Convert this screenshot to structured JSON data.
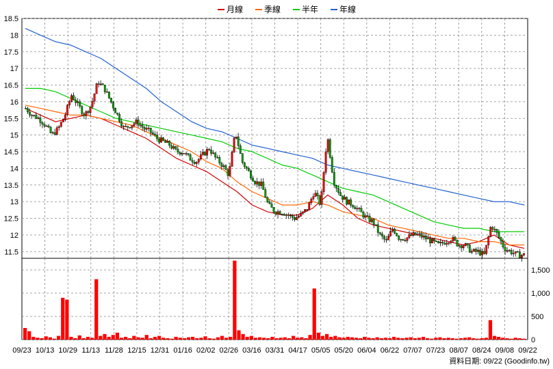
{
  "chart_data": [
    {
      "type": "candlestick",
      "grid": true,
      "legend_placement": "top-center",
      "ylim": [
        11.3,
        18.5
      ],
      "yticks": [
        "18.5",
        "18",
        "17.5",
        "17",
        "16.5",
        "16",
        "15.5",
        "15",
        "14.5",
        "14",
        "13.5",
        "13",
        "12.5",
        "12",
        "11.5"
      ],
      "xticks": [
        "09/23",
        "10/13",
        "10/29",
        "11/13",
        "11/28",
        "12/15",
        "12/31",
        "01/16",
        "02/02",
        "02/26",
        "03/16",
        "03/31",
        "04/17",
        "05/05",
        "05/20",
        "06/04",
        "06/22",
        "07/07",
        "07/23",
        "08/07",
        "08/24",
        "09/08",
        "09/22"
      ],
      "colors": {
        "up": "#ff0000",
        "down": "#00a000",
        "month": "#d00000",
        "quarter": "#ff6600",
        "half_year": "#00cc00",
        "year": "#1f5fcf"
      },
      "series": [
        {
          "name": "月線",
          "color": "#d00000",
          "values": [
            15.8,
            15.6,
            15.4,
            15.5,
            15.6,
            15.5,
            15.3,
            15.1,
            14.9,
            14.6,
            14.3,
            14.1,
            13.9,
            13.6,
            13.3,
            12.9,
            12.7,
            12.6,
            12.6,
            12.8,
            13.2,
            12.9,
            12.5,
            12.3,
            12.2,
            12.1,
            12.0,
            11.9,
            11.8,
            11.7,
            11.8,
            12.0,
            11.7,
            11.6
          ]
        },
        {
          "name": "季線",
          "color": "#ff6600",
          "values": [
            15.9,
            15.8,
            15.7,
            15.6,
            15.6,
            15.5,
            15.4,
            15.3,
            15.1,
            14.9,
            14.7,
            14.5,
            14.2,
            14.0,
            13.6,
            13.3,
            13.1,
            12.9,
            12.9,
            13.0,
            12.9,
            12.7,
            12.6,
            12.5,
            12.3,
            12.2,
            12.1,
            12.0,
            11.9,
            11.9,
            11.8,
            11.8,
            11.7,
            11.7
          ]
        },
        {
          "name": "半年",
          "color": "#00cc00",
          "values": [
            16.4,
            16.4,
            16.3,
            16.1,
            15.9,
            15.7,
            15.5,
            15.4,
            15.3,
            15.2,
            15.1,
            15.0,
            14.9,
            14.8,
            14.6,
            14.5,
            14.3,
            14.1,
            14.0,
            13.8,
            13.6,
            13.4,
            13.3,
            13.2,
            13.0,
            12.8,
            12.6,
            12.4,
            12.3,
            12.2,
            12.2,
            12.1,
            12.1,
            12.1
          ]
        },
        {
          "name": "年線",
          "color": "#1f5fcf",
          "values": [
            18.2,
            18.0,
            17.8,
            17.7,
            17.5,
            17.3,
            17.0,
            16.7,
            16.4,
            16.0,
            15.7,
            15.4,
            15.2,
            15.1,
            14.9,
            14.7,
            14.6,
            14.5,
            14.4,
            14.3,
            14.1,
            14.0,
            13.9,
            13.8,
            13.7,
            13.6,
            13.5,
            13.4,
            13.3,
            13.2,
            13.1,
            13.0,
            13.0,
            12.9
          ]
        }
      ],
      "price_path": [
        15.8,
        15.6,
        15.5,
        15.3,
        15.0,
        15.2,
        15.6,
        16.2,
        15.9,
        15.6,
        15.9,
        16.6,
        16.4,
        16.0,
        15.6,
        15.2,
        15.3,
        15.4,
        15.2,
        15.1,
        14.9,
        14.8,
        14.7,
        14.5,
        14.5,
        14.3,
        14.2,
        14.4,
        14.6,
        14.3,
        14.1,
        13.8,
        15.1,
        14.2,
        13.9,
        13.6,
        13.5,
        12.9,
        12.7,
        12.7,
        12.6,
        12.5,
        12.6,
        12.8,
        13.3,
        12.9,
        15.0,
        13.6,
        13.2,
        13.0,
        12.9,
        12.7,
        12.5,
        12.4,
        12.0,
        11.8,
        12.2,
        11.9,
        11.9,
        12.0,
        12.0,
        11.9,
        11.8,
        11.7,
        11.8,
        11.9,
        11.7,
        11.7,
        11.5,
        11.5,
        11.4,
        12.3,
        12.0,
        11.6,
        11.5,
        11.4,
        11.4
      ]
    },
    {
      "type": "bar",
      "ylim": [
        0,
        1750
      ],
      "yticks": [
        "1,500",
        "1,000",
        "500",
        "0"
      ],
      "color": "#ff0000",
      "values": [
        250,
        180,
        60,
        40,
        30,
        70,
        50,
        20,
        80,
        900,
        860,
        60,
        30,
        90,
        30,
        60,
        40,
        1300,
        80,
        120,
        60,
        100,
        150,
        40,
        60,
        30,
        80,
        50,
        40,
        100,
        30,
        60,
        80,
        40,
        30,
        20,
        60,
        40,
        30,
        50,
        60,
        30,
        40,
        70,
        30,
        20,
        50,
        80,
        40,
        60,
        1700,
        200,
        120,
        60,
        80,
        40,
        50,
        40,
        30,
        60,
        30,
        40,
        50,
        30,
        80,
        40,
        50,
        30,
        100,
        1100,
        150,
        80,
        120,
        60,
        80,
        50,
        40,
        60,
        50,
        40,
        30,
        60,
        40,
        30,
        50,
        30,
        40,
        30,
        60,
        40,
        30,
        40,
        50,
        30,
        40,
        60,
        30,
        20,
        40,
        50,
        30,
        40,
        30,
        20,
        30,
        40,
        50,
        30,
        20,
        30,
        40,
        420,
        80,
        60,
        40,
        30,
        20,
        40,
        30,
        20
      ]
    }
  ],
  "legend": {
    "items": [
      {
        "label": "月線",
        "color": "#d00000"
      },
      {
        "label": "季線",
        "color": "#ff6600"
      },
      {
        "label": "半年",
        "color": "#00cc00"
      },
      {
        "label": "年線",
        "color": "#1f5fcf"
      }
    ]
  },
  "source": "資料日期: 09/22  (Goodinfo.tw)"
}
